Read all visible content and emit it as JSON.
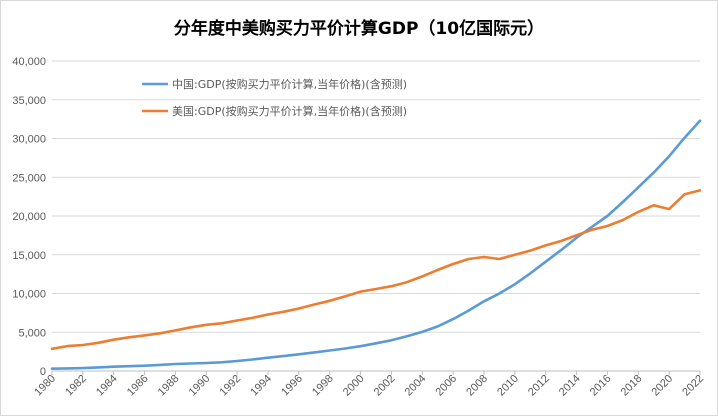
{
  "chart_data": {
    "type": "line",
    "title": "分年度中美购买力平价计算GDP（10亿国际元）",
    "xlabel": "",
    "ylabel": "",
    "ylim": [
      0,
      40000
    ],
    "yticks": [
      0,
      5000,
      10000,
      15000,
      20000,
      25000,
      30000,
      35000,
      40000
    ],
    "ytick_labels": [
      "0",
      "5,000",
      "10,000",
      "15,000",
      "20,000",
      "25,000",
      "30,000",
      "35,000",
      "40,000"
    ],
    "x": [
      1980,
      1981,
      1982,
      1983,
      1984,
      1985,
      1986,
      1987,
      1988,
      1989,
      1990,
      1991,
      1992,
      1993,
      1994,
      1995,
      1996,
      1997,
      1998,
      1999,
      2000,
      2001,
      2002,
      2003,
      2004,
      2005,
      2006,
      2007,
      2008,
      2009,
      2010,
      2011,
      2012,
      2013,
      2014,
      2015,
      2016,
      2017,
      2018,
      2019,
      2020,
      2021,
      2022
    ],
    "xtick_labels": [
      "1980",
      "1982",
      "1984",
      "1986",
      "1988",
      "1990",
      "1992",
      "1994",
      "1996",
      "1998",
      "2000",
      "2002",
      "2004",
      "2006",
      "2008",
      "2010",
      "2012",
      "2014",
      "2016",
      "2018",
      "2020",
      "2022"
    ],
    "grid": true,
    "legend": "top-left",
    "series": [
      {
        "name": "中国:GDP(按购买力平价计算,当年价格)(含预测)",
        "color": "#5b9bd5",
        "values": [
          300,
          340,
          380,
          460,
          560,
          620,
          690,
          790,
          900,
          970,
          1030,
          1120,
          1290,
          1480,
          1710,
          1920,
          2150,
          2400,
          2650,
          2900,
          3200,
          3580,
          3960,
          4480,
          5050,
          5750,
          6700,
          7800,
          9000,
          10000,
          11200,
          12600,
          14100,
          15600,
          17200,
          18600,
          20000,
          21800,
          23700,
          25600,
          27700,
          30100,
          32300
        ]
      },
      {
        "name": "美国:GDP(按购买力平价计算,当年价格)(含预测)",
        "color": "#ed7d31",
        "values": [
          2860,
          3210,
          3350,
          3640,
          4040,
          4350,
          4590,
          4860,
          5240,
          5640,
          5960,
          6160,
          6520,
          6860,
          7290,
          7640,
          8070,
          8580,
          9060,
          9630,
          10250,
          10580,
          10940,
          11460,
          12210,
          13040,
          13810,
          14450,
          14710,
          14450,
          14990,
          15540,
          16200,
          16780,
          17520,
          18220,
          18710,
          19480,
          20530,
          21380,
          20890,
          22800,
          23300
        ]
      }
    ]
  }
}
